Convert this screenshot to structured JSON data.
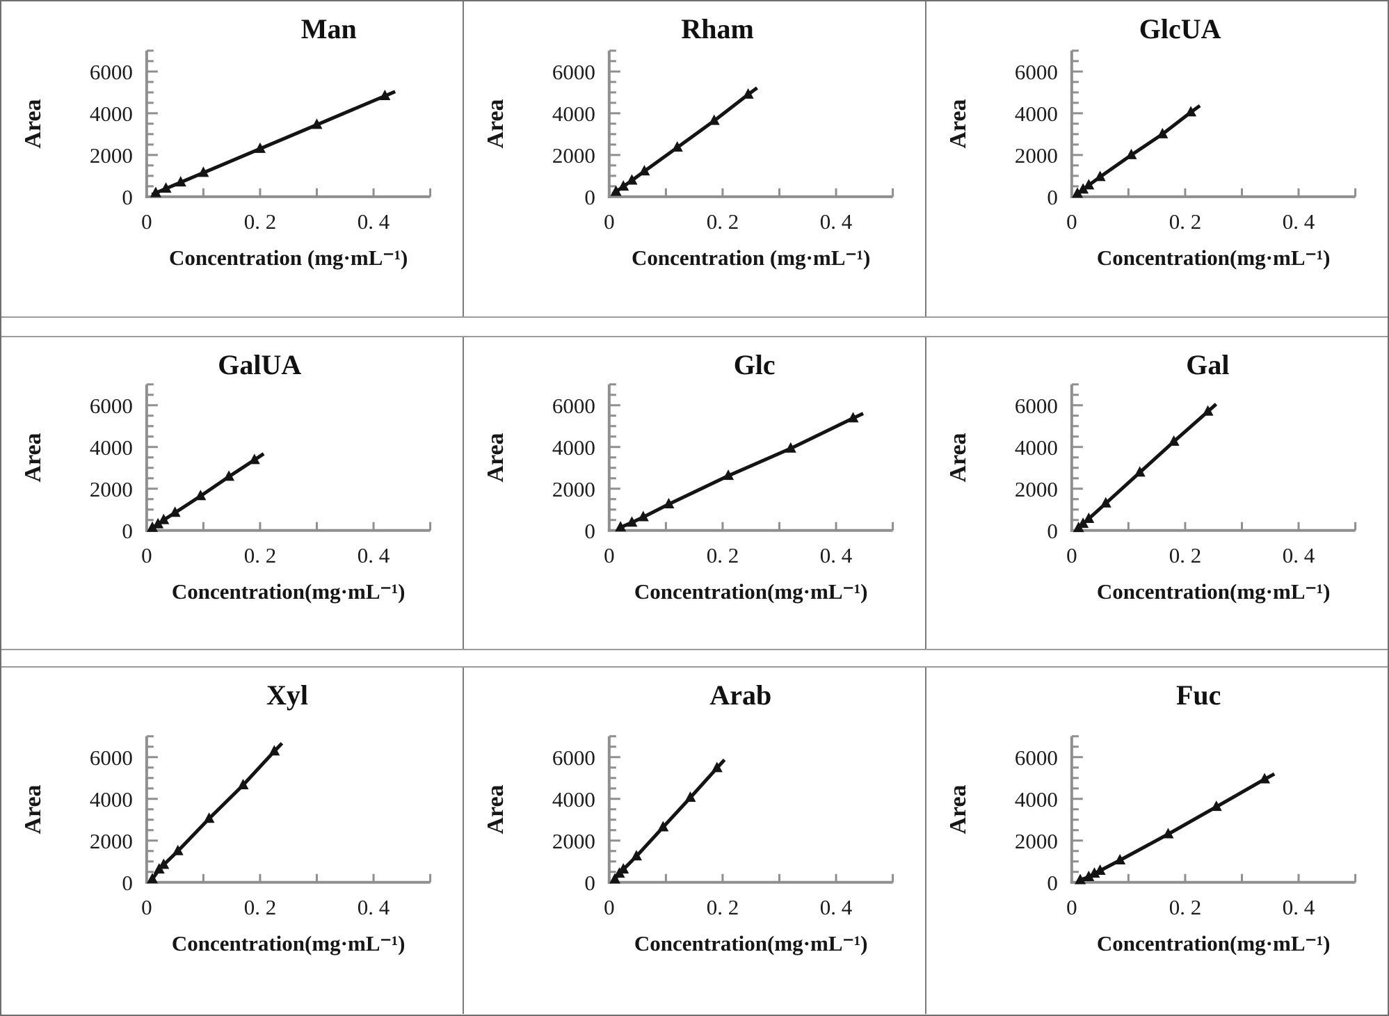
{
  "figure": {
    "description": "3x3 grid of monosaccharide calibration curves",
    "colors": {
      "axis": "#8f8f8f",
      "line": "#141414",
      "marker": "#141414",
      "text": "#1c1c1c",
      "background": "#ffffff"
    }
  },
  "chart_data": [
    {
      "type": "line",
      "title": "Man",
      "xlabel": "Concentration (mg·mL⁻¹)",
      "ylabel": "Area",
      "x": [
        0.016,
        0.034,
        0.06,
        0.1,
        0.2,
        0.3,
        0.42
      ],
      "y": [
        180,
        390,
        690,
        1150,
        2300,
        3450,
        4830
      ],
      "xlim": [
        0,
        0.5
      ],
      "ylim": [
        0,
        7000
      ],
      "x_tick_labels": [
        {
          "value": 0,
          "label": "0"
        },
        {
          "value": 0.2,
          "label": "0. 2"
        },
        {
          "value": 0.4,
          "label": "0. 4"
        }
      ],
      "y_tick_labels": [
        {
          "value": 0,
          "label": "0"
        },
        {
          "value": 2000,
          "label": "2000"
        },
        {
          "value": 4000,
          "label": "4000"
        },
        {
          "value": 6000,
          "label": "6000"
        }
      ],
      "x_minor_tick_step": 0.1,
      "y_minor_tick_step": 500,
      "marker": "filled-triangle-up",
      "grid": false,
      "layout": {
        "title_x_pct": 71
      }
    },
    {
      "type": "line",
      "title": "Rham",
      "xlabel": "Concentration (mg·mL⁻¹)",
      "ylabel": "Area",
      "x": [
        0.012,
        0.025,
        0.04,
        0.062,
        0.12,
        0.185,
        0.245
      ],
      "y": [
        240,
        490,
        780,
        1220,
        2360,
        3640,
        4900
      ],
      "xlim": [
        0,
        0.5
      ],
      "ylim": [
        0,
        7000
      ],
      "x_tick_labels": [
        {
          "value": 0,
          "label": "0"
        },
        {
          "value": 0.2,
          "label": "0. 2"
        },
        {
          "value": 0.4,
          "label": "0. 4"
        }
      ],
      "y_tick_labels": [
        {
          "value": 0,
          "label": "0"
        },
        {
          "value": 2000,
          "label": "2000"
        },
        {
          "value": 4000,
          "label": "4000"
        },
        {
          "value": 6000,
          "label": "6000"
        }
      ],
      "x_minor_tick_step": 0.1,
      "y_minor_tick_step": 500,
      "marker": "filled-triangle-up",
      "grid": false,
      "layout": {
        "title_x_pct": 55
      }
    },
    {
      "type": "line",
      "title": "GlcUA",
      "xlabel": "Concentration(mg·mL⁻¹)",
      "ylabel": "Area",
      "x": [
        0.01,
        0.02,
        0.03,
        0.05,
        0.105,
        0.16,
        0.21
      ],
      "y": [
        150,
        350,
        550,
        950,
        2000,
        3000,
        4050
      ],
      "xlim": [
        0,
        0.5
      ],
      "ylim": [
        0,
        7000
      ],
      "x_tick_labels": [
        {
          "value": 0,
          "label": "0"
        },
        {
          "value": 0.2,
          "label": "0. 2"
        },
        {
          "value": 0.4,
          "label": "0. 4"
        }
      ],
      "y_tick_labels": [
        {
          "value": 0,
          "label": "0"
        },
        {
          "value": 2000,
          "label": "2000"
        },
        {
          "value": 4000,
          "label": "4000"
        },
        {
          "value": 6000,
          "label": "6000"
        }
      ],
      "x_minor_tick_step": 0.1,
      "y_minor_tick_step": 500,
      "marker": "filled-triangle-up",
      "grid": false,
      "layout": {
        "title_x_pct": 55
      }
    },
    {
      "type": "line",
      "title": "GalUA",
      "xlabel": "Concentration(mg·mL⁻¹)",
      "ylabel": "Area",
      "x": [
        0.01,
        0.02,
        0.03,
        0.05,
        0.095,
        0.145,
        0.19
      ],
      "y": [
        130,
        300,
        500,
        850,
        1650,
        2580,
        3380
      ],
      "xlim": [
        0,
        0.5
      ],
      "ylim": [
        0,
        7000
      ],
      "x_tick_labels": [
        {
          "value": 0,
          "label": "0"
        },
        {
          "value": 0.2,
          "label": "0. 2"
        },
        {
          "value": 0.4,
          "label": "0. 4"
        }
      ],
      "y_tick_labels": [
        {
          "value": 0,
          "label": "0"
        },
        {
          "value": 2000,
          "label": "2000"
        },
        {
          "value": 4000,
          "label": "4000"
        },
        {
          "value": 6000,
          "label": "6000"
        }
      ],
      "x_minor_tick_step": 0.1,
      "y_minor_tick_step": 500,
      "marker": "filled-triangle-up",
      "grid": false,
      "layout": {
        "title_x_pct": 56
      }
    },
    {
      "type": "line",
      "title": "Glc",
      "xlabel": "Concentration(mg·mL⁻¹)",
      "ylabel": "Area",
      "x": [
        0.02,
        0.04,
        0.06,
        0.105,
        0.21,
        0.32,
        0.43
      ],
      "y": [
        150,
        380,
        640,
        1260,
        2620,
        3930,
        5380
      ],
      "xlim": [
        0,
        0.5
      ],
      "ylim": [
        0,
        7000
      ],
      "x_tick_labels": [
        {
          "value": 0,
          "label": "0"
        },
        {
          "value": 0.2,
          "label": "0. 2"
        },
        {
          "value": 0.4,
          "label": "0. 4"
        }
      ],
      "y_tick_labels": [
        {
          "value": 0,
          "label": "0"
        },
        {
          "value": 2000,
          "label": "2000"
        },
        {
          "value": 4000,
          "label": "4000"
        },
        {
          "value": 6000,
          "label": "6000"
        }
      ],
      "x_minor_tick_step": 0.1,
      "y_minor_tick_step": 500,
      "marker": "filled-triangle-up",
      "grid": false,
      "layout": {
        "title_x_pct": 63
      }
    },
    {
      "type": "line",
      "title": "Gal",
      "xlabel": "Concentration(mg·mL⁻¹)",
      "ylabel": "Area",
      "x": [
        0.012,
        0.02,
        0.03,
        0.06,
        0.12,
        0.18,
        0.24
      ],
      "y": [
        120,
        320,
        560,
        1300,
        2780,
        4260,
        5700
      ],
      "xlim": [
        0,
        0.5
      ],
      "ylim": [
        0,
        7000
      ],
      "x_tick_labels": [
        {
          "value": 0,
          "label": "0"
        },
        {
          "value": 0.2,
          "label": "0. 2"
        },
        {
          "value": 0.4,
          "label": "0. 4"
        }
      ],
      "y_tick_labels": [
        {
          "value": 0,
          "label": "0"
        },
        {
          "value": 2000,
          "label": "2000"
        },
        {
          "value": 4000,
          "label": "4000"
        },
        {
          "value": 6000,
          "label": "6000"
        }
      ],
      "x_minor_tick_step": 0.1,
      "y_minor_tick_step": 500,
      "marker": "filled-triangle-up",
      "grid": false,
      "layout": {
        "title_x_pct": 61
      }
    },
    {
      "type": "line",
      "title": "Xyl",
      "xlabel": "Concentration(mg·mL⁻¹)",
      "ylabel": "Area",
      "x": [
        0.01,
        0.022,
        0.03,
        0.055,
        0.11,
        0.17,
        0.225
      ],
      "y": [
        150,
        620,
        840,
        1500,
        3050,
        4660,
        6280
      ],
      "xlim": [
        0,
        0.5
      ],
      "ylim": [
        0,
        7000
      ],
      "x_tick_labels": [
        {
          "value": 0,
          "label": "0"
        },
        {
          "value": 0.2,
          "label": "0. 2"
        },
        {
          "value": 0.4,
          "label": "0. 4"
        }
      ],
      "y_tick_labels": [
        {
          "value": 0,
          "label": "0"
        },
        {
          "value": 2000,
          "label": "2000"
        },
        {
          "value": 4000,
          "label": "4000"
        },
        {
          "value": 6000,
          "label": "6000"
        }
      ],
      "x_minor_tick_step": 0.1,
      "y_minor_tick_step": 500,
      "marker": "filled-triangle-up",
      "grid": false,
      "layout": {
        "title_x_pct": 62
      }
    },
    {
      "type": "line",
      "title": "Arab",
      "xlabel": "Concentration(mg·mL⁻¹)",
      "ylabel": "Area",
      "x": [
        0.01,
        0.018,
        0.025,
        0.048,
        0.095,
        0.143,
        0.19
      ],
      "y": [
        140,
        420,
        620,
        1250,
        2640,
        4060,
        5480
      ],
      "xlim": [
        0,
        0.5
      ],
      "ylim": [
        0,
        7000
      ],
      "x_tick_labels": [
        {
          "value": 0,
          "label": "0"
        },
        {
          "value": 0.2,
          "label": "0. 2"
        },
        {
          "value": 0.4,
          "label": "0. 4"
        }
      ],
      "y_tick_labels": [
        {
          "value": 0,
          "label": "0"
        },
        {
          "value": 2000,
          "label": "2000"
        },
        {
          "value": 4000,
          "label": "4000"
        },
        {
          "value": 6000,
          "label": "6000"
        }
      ],
      "x_minor_tick_step": 0.1,
      "y_minor_tick_step": 500,
      "marker": "filled-triangle-up",
      "grid": false,
      "layout": {
        "title_x_pct": 60
      }
    },
    {
      "type": "line",
      "title": "Fuc",
      "xlabel": "Concentration(mg·mL⁻¹)",
      "ylabel": "Area",
      "x": [
        0.015,
        0.03,
        0.04,
        0.05,
        0.085,
        0.17,
        0.255,
        0.34
      ],
      "y": [
        110,
        260,
        420,
        560,
        1060,
        2310,
        3620,
        4940
      ],
      "xlim": [
        0,
        0.5
      ],
      "ylim": [
        0,
        7000
      ],
      "x_tick_labels": [
        {
          "value": 0,
          "label": "0"
        },
        {
          "value": 0.2,
          "label": "0. 2"
        },
        {
          "value": 0.4,
          "label": "0. 4"
        }
      ],
      "y_tick_labels": [
        {
          "value": 0,
          "label": "0"
        },
        {
          "value": 2000,
          "label": "2000"
        },
        {
          "value": 4000,
          "label": "4000"
        },
        {
          "value": 6000,
          "label": "6000"
        }
      ],
      "x_minor_tick_step": 0.1,
      "y_minor_tick_step": 500,
      "marker": "filled-triangle-up",
      "grid": false,
      "layout": {
        "title_x_pct": 59
      }
    }
  ]
}
